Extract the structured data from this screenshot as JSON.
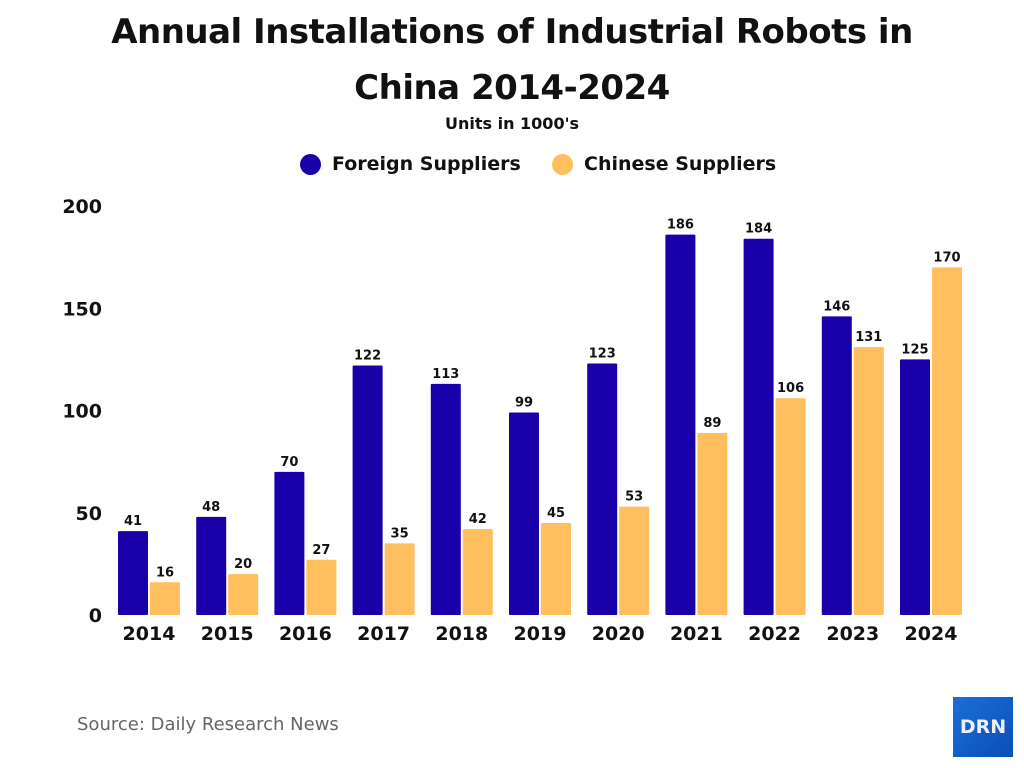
{
  "chart_data": {
    "type": "bar",
    "title_line1": "Annual Installations of Industrial Robots in",
    "title_line2": "China 2014-2024",
    "subtitle": "Units in 1000's",
    "categories": [
      "2014",
      "2015",
      "2016",
      "2017",
      "2018",
      "2019",
      "2020",
      "2021",
      "2022",
      "2023",
      "2024"
    ],
    "series": [
      {
        "name": "Foreign Suppliers",
        "color": "#1a00a8",
        "values": [
          41,
          48,
          70,
          122,
          113,
          99,
          123,
          186,
          184,
          146,
          125
        ]
      },
      {
        "name": "Chinese Suppliers",
        "color": "#ffbf5f",
        "values": [
          16,
          20,
          27,
          35,
          42,
          45,
          53,
          89,
          106,
          131,
          170
        ]
      }
    ],
    "ylim": [
      0,
      200
    ],
    "yticks": [
      0,
      50,
      100,
      150,
      200
    ],
    "grid": false,
    "legend_position": "top-center",
    "data_labels": true
  },
  "footer": {
    "source": "Source: Daily Research News",
    "logo_text": "DRN"
  }
}
